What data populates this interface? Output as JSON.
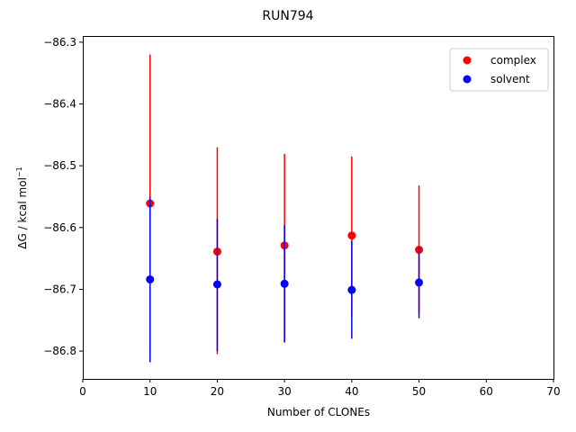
{
  "chart_data": {
    "type": "scatter",
    "title": "RUN794",
    "xlabel": "Number of CLONEs",
    "ylabel": "ΔG / kcal mol",
    "ylabel_superscript": "−1",
    "xlim": [
      0,
      70
    ],
    "ylim": [
      -86.845,
      -86.29
    ],
    "x_ticks": [
      0,
      10,
      20,
      30,
      40,
      50,
      60,
      70
    ],
    "x_tick_labels": [
      "0",
      "10",
      "20",
      "30",
      "40",
      "50",
      "60",
      "70"
    ],
    "y_ticks": [
      -86.3,
      -86.4,
      -86.5,
      -86.6,
      -86.7,
      -86.8
    ],
    "y_tick_labels": [
      "−86.3",
      "−86.4",
      "−86.5",
      "−86.6",
      "−86.7",
      "−86.8"
    ],
    "grid": false,
    "legend_position": "top-right",
    "series": [
      {
        "name": "complex",
        "color": "#ff0000",
        "x": [
          10,
          20,
          30,
          40,
          50
        ],
        "y": [
          -86.561,
          -86.639,
          -86.629,
          -86.613,
          -86.636
        ],
        "err_low": [
          -86.8,
          -86.805,
          -86.785,
          -86.743,
          -86.738
        ],
        "err_high": [
          -86.32,
          -86.47,
          -86.481,
          -86.485,
          -86.532
        ]
      },
      {
        "name": "solvent",
        "color": "#0000ff",
        "x": [
          10,
          20,
          30,
          40,
          50
        ],
        "y": [
          -86.684,
          -86.692,
          -86.691,
          -86.701,
          -86.689
        ],
        "err_low": [
          -86.818,
          -86.8,
          -86.786,
          -86.78,
          -86.747
        ],
        "err_high": [
          -86.55,
          -86.586,
          -86.596,
          -86.622,
          -86.632
        ]
      }
    ]
  }
}
